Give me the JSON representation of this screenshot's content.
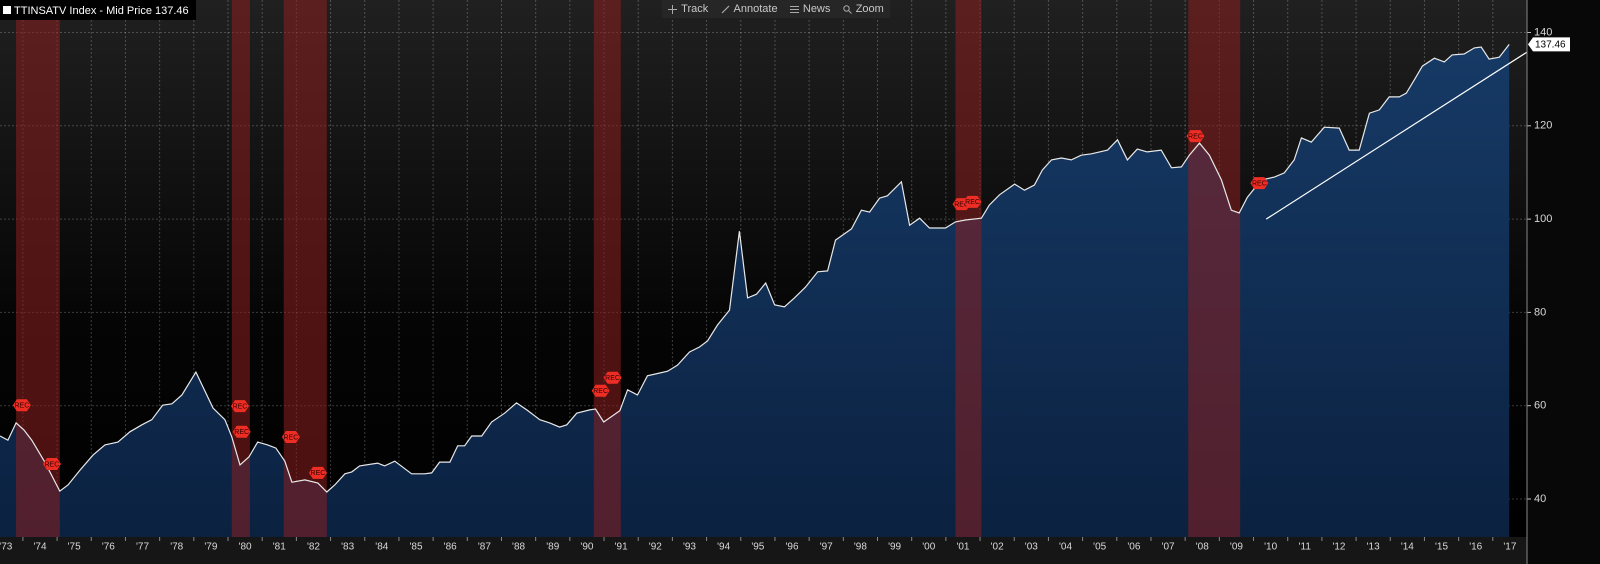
{
  "toolbar": [
    "Track",
    "Annotate",
    "News",
    "Zoom"
  ],
  "chart_data": {
    "type": "line",
    "series": [
      {
        "name": "TTINSATV Index - Mid Price",
        "color": "#e8e8e8",
        "area_color": "#12325a",
        "x": [
          1973.33,
          1973.56,
          1973.8,
          1974.03,
          1974.26,
          1974.64,
          1975.08,
          1975.32,
          1975.67,
          1976.05,
          1976.4,
          1976.78,
          1977.13,
          1977.48,
          1977.77,
          1978.09,
          1978.36,
          1978.65,
          1979.06,
          1979.56,
          1979.91,
          1980.11,
          1980.35,
          1980.61,
          1980.87,
          1981.16,
          1981.4,
          1981.66,
          1981.87,
          1982.25,
          1982.63,
          1982.89,
          1983.12,
          1983.42,
          1983.62,
          1983.85,
          1984.38,
          1984.58,
          1984.88,
          1985.37,
          1985.75,
          1985.96,
          1986.19,
          1986.49,
          1986.72,
          1986.92,
          1987.13,
          1987.42,
          1987.71,
          1988.09,
          1988.44,
          1988.74,
          1989.12,
          1989.41,
          1989.7,
          1989.91,
          1990.2,
          1990.58,
          1990.75,
          1990.99,
          1991.46,
          1991.69,
          1991.98,
          1992.27,
          1992.63,
          1992.86,
          1993.15,
          1993.5,
          1993.8,
          1994.03,
          1994.32,
          1994.67,
          1994.96,
          1995.2,
          1995.46,
          1995.73,
          1995.99,
          1996.28,
          1996.57,
          1996.89,
          1997.25,
          1997.54,
          1997.77,
          1998.06,
          1998.24,
          1998.53,
          1998.77,
          1999.06,
          1999.29,
          1999.7,
          1999.94,
          2000.23,
          2000.52,
          2000.99,
          2001.28,
          2001.57,
          2002.04,
          2002.27,
          2002.57,
          2003.01,
          2003.3,
          2003.59,
          2003.82,
          2004.09,
          2004.38,
          2004.67,
          2004.96,
          2005.26,
          2005.73,
          2006.02,
          2006.31,
          2006.6,
          2006.89,
          2007.3,
          2007.6,
          2007.89,
          2008.12,
          2008.42,
          2008.71,
          2009.06,
          2009.35,
          2009.58,
          2009.82,
          2010.23,
          2010.61,
          2010.9,
          2011.19,
          2011.4,
          2011.69,
          2012.07,
          2012.51,
          2012.8,
          2013.09,
          2013.39,
          2013.68,
          2013.97,
          2014.26,
          2014.47,
          2014.7,
          2014.94,
          2015.29,
          2015.58,
          2015.81,
          2016.16,
          2016.46,
          2016.66,
          2016.89,
          2017.19,
          2017.48
        ],
        "values": [
          53.5,
          52.6,
          56.3,
          54.8,
          52.6,
          47.9,
          41.7,
          43.0,
          46.2,
          49.4,
          51.6,
          52.2,
          54.4,
          55.9,
          57.0,
          60.1,
          60.4,
          62.3,
          67.2,
          59.5,
          57.0,
          53.3,
          47.3,
          49.0,
          52.2,
          51.6,
          50.9,
          48.1,
          43.6,
          44.1,
          43.4,
          41.5,
          43.0,
          45.4,
          45.8,
          47.1,
          47.7,
          47.1,
          48.1,
          45.4,
          45.4,
          45.6,
          47.9,
          47.9,
          51.4,
          51.4,
          53.5,
          53.5,
          56.5,
          58.4,
          60.6,
          59.1,
          57.0,
          56.3,
          55.4,
          55.9,
          58.4,
          59.1,
          59.3,
          56.5,
          58.9,
          63.4,
          62.3,
          66.4,
          67.0,
          67.4,
          68.7,
          71.5,
          72.6,
          73.9,
          77.3,
          80.5,
          97.4,
          83.1,
          83.9,
          86.3,
          81.6,
          81.2,
          83.1,
          85.4,
          88.7,
          88.9,
          95.5,
          97.0,
          97.9,
          101.9,
          101.5,
          104.5,
          105.0,
          108.0,
          98.7,
          100.2,
          98.1,
          98.1,
          99.4,
          99.8,
          100.2,
          103.0,
          105.2,
          107.5,
          106.2,
          107.3,
          110.5,
          112.7,
          113.1,
          112.7,
          113.7,
          114.0,
          114.8,
          117.0,
          112.7,
          115.0,
          114.4,
          114.8,
          111.0,
          111.2,
          113.7,
          116.3,
          113.7,
          108.4,
          101.9,
          101.3,
          104.7,
          108.4,
          109.0,
          109.9,
          112.7,
          117.4,
          116.5,
          119.7,
          119.5,
          114.8,
          114.8,
          122.7,
          123.4,
          126.2,
          126.2,
          127.0,
          129.8,
          132.8,
          134.5,
          133.7,
          135.2,
          135.4,
          136.7,
          136.9,
          134.3,
          134.7,
          137.46
        ]
      }
    ],
    "trend_line": {
      "color": "#ffffff",
      "x": [
        2010.37,
        2018.0
      ],
      "values": [
        100,
        135.8
      ]
    },
    "shaded_periods": [
      [
        1973.8,
        1975.08
      ],
      [
        1980.11,
        1980.64
      ],
      [
        1981.63,
        1982.89
      ],
      [
        1990.7,
        1991.49
      ],
      [
        2001.28,
        2002.04
      ],
      [
        2008.09,
        2009.61
      ]
    ],
    "shade_color": "#8c1f1f",
    "markers": [
      {
        "label": "REC",
        "x": 1973.97,
        "y": 60.1
      },
      {
        "label": "REC",
        "x": 1974.85,
        "y": 47.5
      },
      {
        "label": "REC",
        "x": 1980.35,
        "y": 59.9
      },
      {
        "label": "REC",
        "x": 1980.4,
        "y": 54.4
      },
      {
        "label": "REC",
        "x": 1981.84,
        "y": 53.3
      },
      {
        "label": "REC",
        "x": 1982.63,
        "y": 45.6
      },
      {
        "label": "REC",
        "x": 1990.9,
        "y": 63.2
      },
      {
        "label": "REC",
        "x": 1991.25,
        "y": 66.0
      },
      {
        "label": "REC",
        "x": 2001.46,
        "y": 103.2
      },
      {
        "label": "REC",
        "x": 2001.78,
        "y": 103.7
      },
      {
        "label": "REC",
        "x": 2008.3,
        "y": 117.8
      },
      {
        "label": "REC",
        "x": 2010.17,
        "y": 107.7
      }
    ],
    "marker_color": "#ee2e24",
    "xlim": [
      1973.33,
      2018.0
    ],
    "ylim": [
      31.85,
      146.97
    ],
    "yticks": [
      40,
      60,
      80,
      100,
      120,
      140
    ],
    "xticks": [
      {
        "value": 1973,
        "label": "'73"
      },
      {
        "value": 1974,
        "label": "'74"
      },
      {
        "value": 1975,
        "label": "'75"
      },
      {
        "value": 1976,
        "label": "'76"
      },
      {
        "value": 1977,
        "label": "'77"
      },
      {
        "value": 1978,
        "label": "'78"
      },
      {
        "value": 1979,
        "label": "'79"
      },
      {
        "value": 1980,
        "label": "'80"
      },
      {
        "value": 1981,
        "label": "'81"
      },
      {
        "value": 1982,
        "label": "'82"
      },
      {
        "value": 1983,
        "label": "'83"
      },
      {
        "value": 1984,
        "label": "'84"
      },
      {
        "value": 1985,
        "label": "'85"
      },
      {
        "value": 1986,
        "label": "'86"
      },
      {
        "value": 1987,
        "label": "'87"
      },
      {
        "value": 1988,
        "label": "'88"
      },
      {
        "value": 1989,
        "label": "'89"
      },
      {
        "value": 1990,
        "label": "'90"
      },
      {
        "value": 1991,
        "label": "'91"
      },
      {
        "value": 1992,
        "label": "'92"
      },
      {
        "value": 1993,
        "label": "'93"
      },
      {
        "value": 1994,
        "label": "'94"
      },
      {
        "value": 1995,
        "label": "'95"
      },
      {
        "value": 1996,
        "label": "'96"
      },
      {
        "value": 1997,
        "label": "'97"
      },
      {
        "value": 1998,
        "label": "'98"
      },
      {
        "value": 1999,
        "label": "'99"
      },
      {
        "value": 2000,
        "label": "'00"
      },
      {
        "value": 2001,
        "label": "'01"
      },
      {
        "value": 2002,
        "label": "'02"
      },
      {
        "value": 2003,
        "label": "'03"
      },
      {
        "value": 2004,
        "label": "'04"
      },
      {
        "value": 2005,
        "label": "'05"
      },
      {
        "value": 2006,
        "label": "'06"
      },
      {
        "value": 2007,
        "label": "'07"
      },
      {
        "value": 2008,
        "label": "'08"
      },
      {
        "value": 2009,
        "label": "'09"
      },
      {
        "value": 2010,
        "label": "'10"
      },
      {
        "value": 2011,
        "label": "'11"
      },
      {
        "value": 2012,
        "label": "'12"
      },
      {
        "value": 2013,
        "label": "'13"
      },
      {
        "value": 2014,
        "label": "'14"
      },
      {
        "value": 2015,
        "label": "'15"
      },
      {
        "value": 2016,
        "label": "'16"
      },
      {
        "value": 2017,
        "label": "'17"
      }
    ],
    "grid": true
  }
}
